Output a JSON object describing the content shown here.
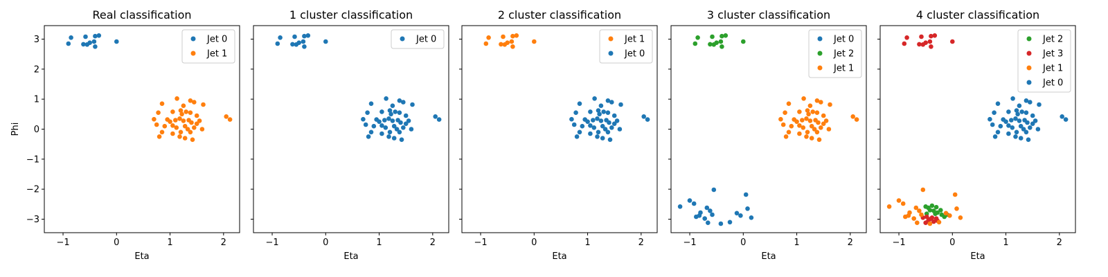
{
  "chart_data": [
    {
      "type": "scatter",
      "title": "Real classification",
      "xlabel": "Eta",
      "ylabel": "Phi",
      "xlim": [
        -1.35,
        2.3
      ],
      "ylim": [
        -3.45,
        3.45
      ],
      "xticks": [
        -1,
        0,
        1,
        2
      ],
      "yticks": [
        -3,
        -2,
        -1,
        0,
        1,
        2,
        3
      ],
      "ytick_labels_shown": true,
      "legend": "top-right",
      "series": [
        {
          "name": "Jet 0",
          "color": "#1f77b4",
          "groups": [
            "top",
            "bottom"
          ]
        },
        {
          "name": "Jet 1",
          "color": "#ff7f0e",
          "groups": [
            "right"
          ]
        }
      ]
    },
    {
      "type": "scatter",
      "title": "1 cluster classification",
      "xlabel": "Eta",
      "ylabel": "",
      "xlim": [
        -1.35,
        2.3
      ],
      "ylim": [
        -3.45,
        3.45
      ],
      "xticks": [
        -1,
        0,
        1,
        2
      ],
      "yticks": [
        -3,
        -2,
        -1,
        0,
        1,
        2,
        3
      ],
      "ytick_labels_shown": false,
      "legend": "top-right",
      "series": [
        {
          "name": "Jet 0",
          "color": "#1f77b4",
          "groups": [
            "top",
            "bottom",
            "right"
          ]
        }
      ]
    },
    {
      "type": "scatter",
      "title": "2 cluster classification",
      "xlabel": "Eta",
      "ylabel": "",
      "xlim": [
        -1.35,
        2.3
      ],
      "ylim": [
        -3.45,
        3.45
      ],
      "xticks": [
        -1,
        0,
        1,
        2
      ],
      "yticks": [
        -3,
        -2,
        -1,
        0,
        1,
        2,
        3
      ],
      "ytick_labels_shown": false,
      "legend": "top-right",
      "series": [
        {
          "name": "Jet 1",
          "color": "#ff7f0e",
          "groups": [
            "top",
            "bottom"
          ]
        },
        {
          "name": "Jet 0",
          "color": "#1f77b4",
          "groups": [
            "right"
          ]
        }
      ]
    },
    {
      "type": "scatter",
      "title": "3 cluster classification",
      "xlabel": "Eta",
      "ylabel": "",
      "xlim": [
        -1.35,
        2.3
      ],
      "ylim": [
        -3.45,
        3.45
      ],
      "xticks": [
        -1,
        0,
        1,
        2
      ],
      "yticks": [
        -3,
        -2,
        -1,
        0,
        1,
        2,
        3
      ],
      "ytick_labels_shown": false,
      "legend": "top-right",
      "series": [
        {
          "name": "Jet 0",
          "color": "#1f77b4",
          "groups": [
            "bottom_main"
          ]
        },
        {
          "name": "Jet 2",
          "color": "#2ca02c",
          "groups": [
            "top",
            "bottom_core"
          ]
        },
        {
          "name": "Jet 1",
          "color": "#ff7f0e",
          "groups": [
            "right"
          ]
        }
      ]
    },
    {
      "type": "scatter",
      "title": "4 cluster classification",
      "xlabel": "Eta",
      "ylabel": "",
      "xlim": [
        -1.35,
        2.3
      ],
      "ylim": [
        -3.45,
        3.45
      ],
      "xticks": [
        -1,
        0,
        1,
        2
      ],
      "yticks": [
        -3,
        -2,
        -1,
        0,
        1,
        2,
        3
      ],
      "ytick_labels_shown": false,
      "legend": "top-right",
      "series": [
        {
          "name": "Jet 2",
          "color": "#2ca02c",
          "groups": [
            "bottom_core_green"
          ]
        },
        {
          "name": "Jet 3",
          "color": "#d62728",
          "groups": [
            "top",
            "bottom_core_red"
          ]
        },
        {
          "name": "Jet 1",
          "color": "#ff7f0e",
          "groups": [
            "bottom_main"
          ]
        },
        {
          "name": "Jet 0",
          "color": "#1f77b4",
          "groups": [
            "right"
          ]
        }
      ]
    }
  ],
  "point_groups": {
    "top": [
      [
        -0.85,
        3.05
      ],
      [
        -0.9,
        2.85
      ],
      [
        -0.58,
        3.08
      ],
      [
        -0.4,
        3.1
      ],
      [
        -0.33,
        3.12
      ],
      [
        -0.5,
        2.88
      ],
      [
        -0.62,
        2.83
      ],
      [
        -0.55,
        2.82
      ],
      [
        -0.42,
        2.92
      ],
      [
        -0.4,
        2.75
      ],
      [
        0.0,
        2.92
      ]
    ],
    "right": [
      [
        1.13,
        1.02
      ],
      [
        0.85,
        0.85
      ],
      [
        1.38,
        0.95
      ],
      [
        1.45,
        0.9
      ],
      [
        1.62,
        0.82
      ],
      [
        1.25,
        0.78
      ],
      [
        0.78,
        0.55
      ],
      [
        1.2,
        0.62
      ],
      [
        1.05,
        0.58
      ],
      [
        1.3,
        0.58
      ],
      [
        1.38,
        0.55
      ],
      [
        1.22,
        0.5
      ],
      [
        1.5,
        0.45
      ],
      [
        0.7,
        0.33
      ],
      [
        0.95,
        0.32
      ],
      [
        1.0,
        0.25
      ],
      [
        1.1,
        0.3
      ],
      [
        1.18,
        0.35
      ],
      [
        1.25,
        0.28
      ],
      [
        1.35,
        0.3
      ],
      [
        1.4,
        0.22
      ],
      [
        1.5,
        0.18
      ],
      [
        1.55,
        0.28
      ],
      [
        1.45,
        0.05
      ],
      [
        1.6,
        0.0
      ],
      [
        0.75,
        0.15
      ],
      [
        0.9,
        0.1
      ],
      [
        1.05,
        0.12
      ],
      [
        1.12,
        0.05
      ],
      [
        1.28,
        0.1
      ],
      [
        1.33,
        0.0
      ],
      [
        0.85,
        -0.1
      ],
      [
        1.05,
        -0.15
      ],
      [
        1.2,
        -0.1
      ],
      [
        1.38,
        -0.1
      ],
      [
        0.8,
        -0.25
      ],
      [
        1.18,
        -0.25
      ],
      [
        1.28,
        -0.3
      ],
      [
        1.42,
        -0.35
      ],
      [
        2.05,
        0.42
      ],
      [
        2.12,
        0.32
      ]
    ],
    "bottom_main": [
      [
        -0.55,
        -2.02
      ],
      [
        0.05,
        -2.18
      ],
      [
        -1.18,
        -2.58
      ],
      [
        -1.0,
        -2.38
      ],
      [
        -0.92,
        -2.48
      ],
      [
        0.08,
        -2.65
      ],
      [
        -0.88,
        -2.92
      ],
      [
        -0.68,
        -2.62
      ],
      [
        -0.8,
        -2.78
      ],
      [
        -0.62,
        -2.72
      ],
      [
        -0.58,
        -2.85
      ],
      [
        -0.72,
        -2.98
      ],
      [
        -0.66,
        -3.12
      ],
      [
        -0.82,
        -2.88
      ],
      [
        0.15,
        -2.95
      ],
      [
        -0.05,
        -2.88
      ],
      [
        -0.12,
        -2.8
      ],
      [
        -0.42,
        -3.15
      ],
      [
        -0.25,
        -3.1
      ]
    ],
    "bottom_core_green": [
      [
        -0.5,
        -2.58
      ],
      [
        -0.45,
        -2.62
      ],
      [
        -0.38,
        -2.55
      ],
      [
        -0.3,
        -2.6
      ],
      [
        -0.42,
        -2.7
      ],
      [
        -0.35,
        -2.72
      ],
      [
        -0.28,
        -2.78
      ],
      [
        -0.22,
        -2.7
      ],
      [
        -0.48,
        -2.82
      ],
      [
        -0.2,
        -2.85
      ],
      [
        -0.32,
        -2.82
      ],
      [
        -0.15,
        -2.92
      ],
      [
        -0.1,
        -2.85
      ]
    ],
    "bottom_core_red": [
      [
        -0.55,
        -2.95
      ],
      [
        -0.48,
        -2.92
      ],
      [
        -0.42,
        -3.0
      ],
      [
        -0.38,
        -2.95
      ],
      [
        -0.3,
        -2.98
      ],
      [
        -0.45,
        -3.05
      ],
      [
        -0.35,
        -3.08
      ],
      [
        -0.28,
        -3.05
      ],
      [
        -0.5,
        -3.12
      ]
    ]
  }
}
